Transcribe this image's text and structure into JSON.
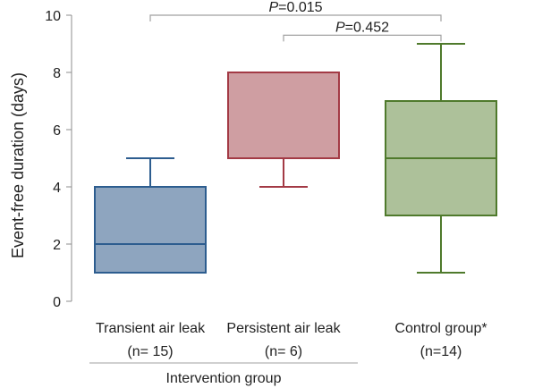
{
  "chart_data": {
    "type": "box",
    "ylabel": "Event-free duration (days)",
    "ylim": [
      0,
      10
    ],
    "yticks": [
      0,
      2,
      4,
      6,
      8,
      10
    ],
    "grid": false,
    "boxes": [
      {
        "label_line1": "Transient air leak",
        "label_line2": "(n= 15)",
        "min": 1,
        "q1": 1,
        "median": 2,
        "q3": 4,
        "max": 5,
        "fill": "#8ea5bf",
        "stroke": "#2d5d8f"
      },
      {
        "label_line1": "Persistent air leak",
        "label_line2": "(n= 6)",
        "min": 4,
        "q1": 5,
        "median": 5,
        "q3": 8,
        "max": 8,
        "fill": "#cf9ea2",
        "stroke": "#a33a45"
      },
      {
        "label_line1": "Control group*",
        "label_line2": "(n=14)",
        "min": 1,
        "q1": 3,
        "median": 5,
        "q3": 7,
        "max": 9,
        "fill": "#adc19a",
        "stroke": "#4f7a2c"
      }
    ],
    "comparisons": [
      {
        "from": 0,
        "to": 2,
        "p_prefix": "P",
        "p_value": "=0.015",
        "level": 10.0
      },
      {
        "from": 1,
        "to": 2,
        "p_prefix": "P",
        "p_value": "=0.452",
        "level": 9.3
      }
    ],
    "group_label": "Intervention group",
    "group_span": [
      0,
      1
    ]
  }
}
